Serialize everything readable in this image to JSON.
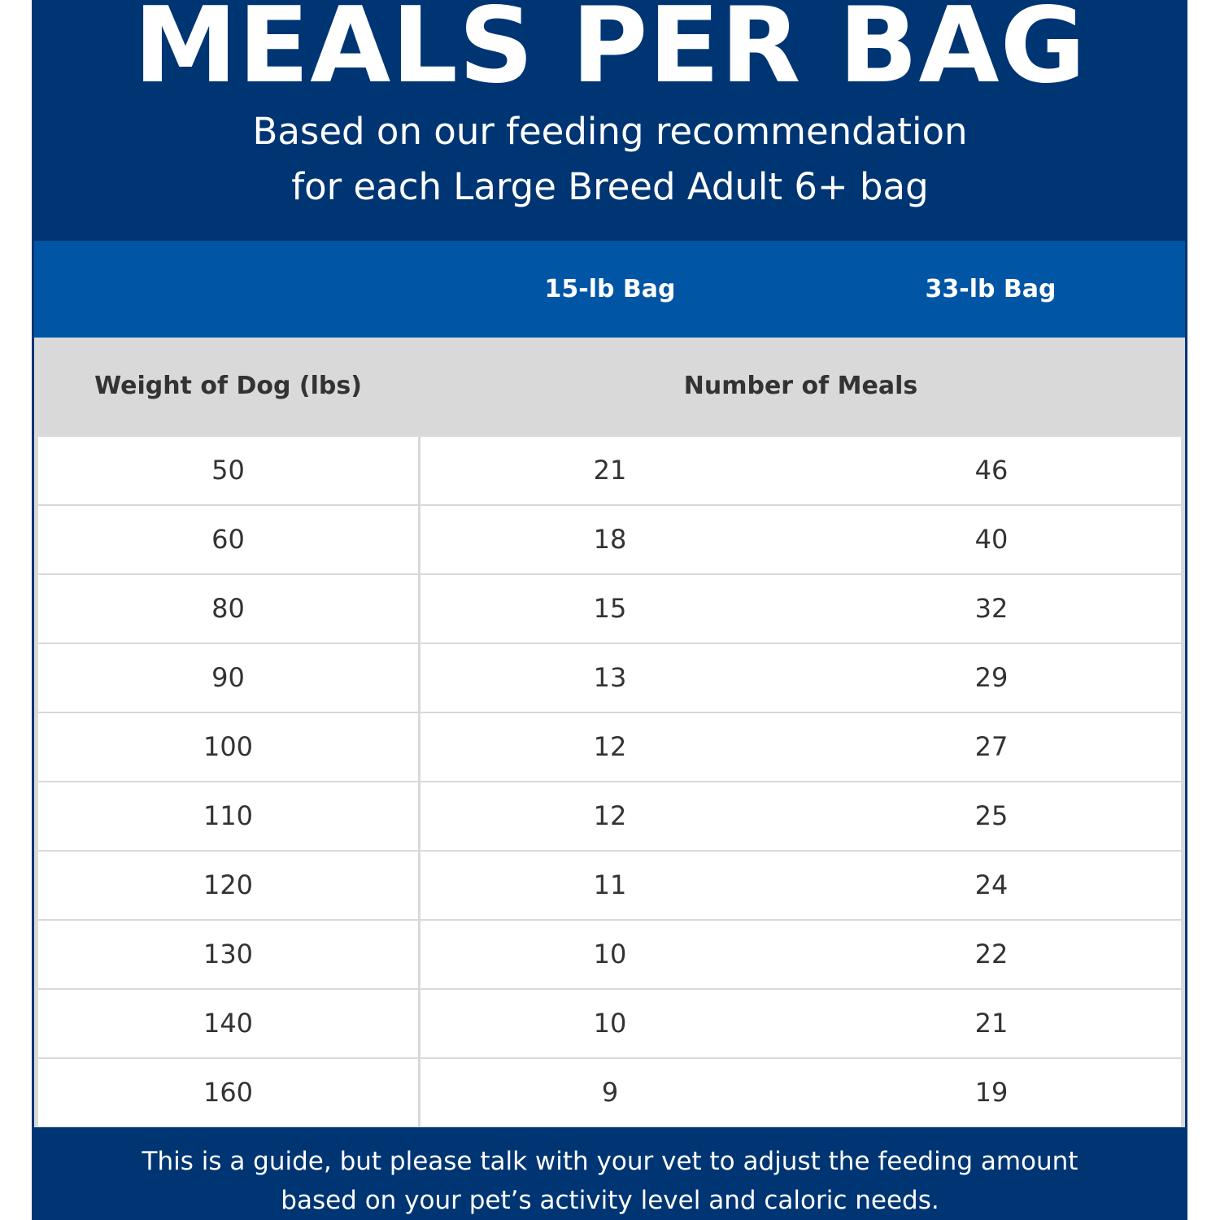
{
  "header": {
    "title": "MEALS PER BAG",
    "subtitle_line1": "Based on our feeding recommendation",
    "subtitle_line2": "for each Large Breed Adult 6+ bag"
  },
  "table": {
    "bag_headers": [
      "15-lb Bag",
      "33-lb Bag"
    ],
    "col1_header": "Weight of Dog (lbs)",
    "meals_header": "Number of Meals",
    "rows": [
      [
        "50",
        "21",
        "46"
      ],
      [
        "60",
        "18",
        "40"
      ],
      [
        "80",
        "15",
        "32"
      ],
      [
        "90",
        "13",
        "29"
      ],
      [
        "100",
        "12",
        "27"
      ],
      [
        "110",
        "12",
        "25"
      ],
      [
        "120",
        "11",
        "24"
      ],
      [
        "130",
        "10",
        "22"
      ],
      [
        "140",
        "10",
        "21"
      ],
      [
        "160",
        "9",
        "19"
      ]
    ]
  },
  "footer": {
    "line1": "This is a guide, but please talk with your vet to adjust the feeding amount",
    "line2": "based on your pet’s activity level and caloric needs."
  },
  "colors": {
    "navy": "#003574",
    "blue": "#0055a5",
    "gray": "#d9d9d9"
  }
}
